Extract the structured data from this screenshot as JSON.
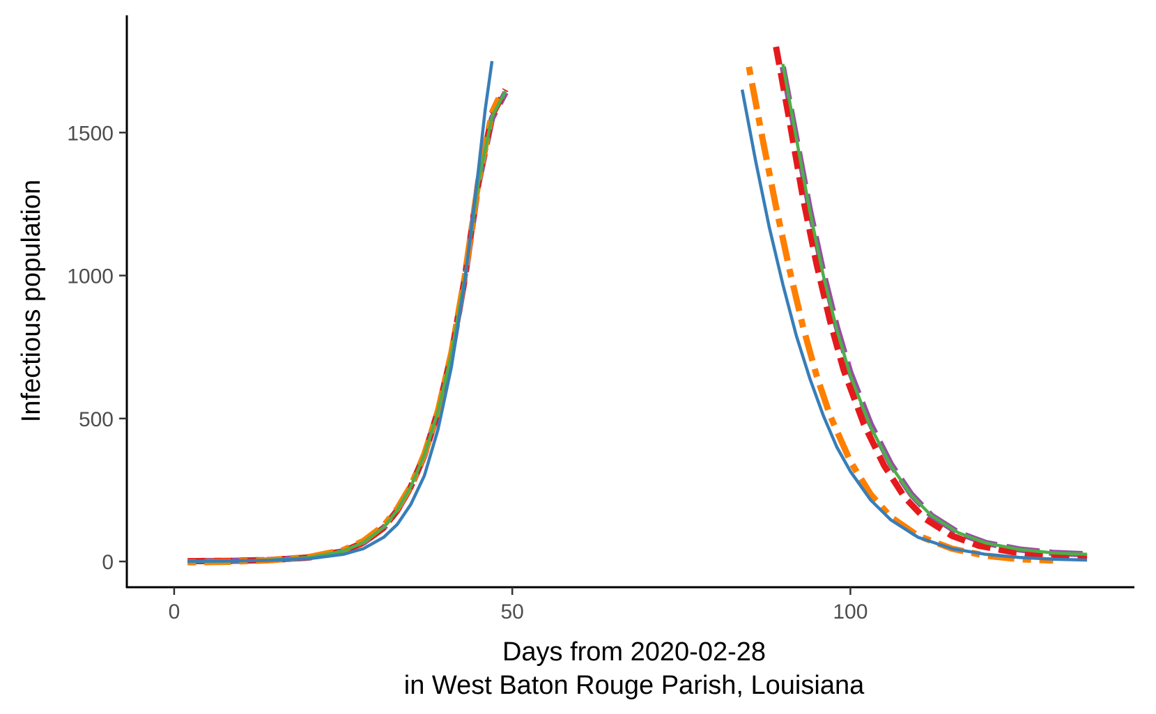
{
  "chart_data": {
    "type": "line",
    "title": "",
    "xlabel_lines": [
      "Days from 2020-02-28",
      "in West Baton Rouge Parish, Louisiana"
    ],
    "ylabel": "Infectious population",
    "xlim": [
      -7,
      142
    ],
    "ylim": [
      -90,
      1910
    ],
    "x_ticks": [
      0,
      50,
      100
    ],
    "y_ticks": [
      0,
      500,
      1000,
      1500
    ],
    "grid": false,
    "legend": "none",
    "series": [
      {
        "color": "#984EA3",
        "dash": "longdash",
        "segments": [
          [
            [
              2,
              1
            ],
            [
              8,
              2
            ],
            [
              14,
              5
            ],
            [
              20,
              14
            ],
            [
              25,
              36
            ],
            [
              28,
              66
            ],
            [
              31,
              118
            ],
            [
              33,
              178
            ],
            [
              35,
              260
            ],
            [
              37,
              370
            ],
            [
              39,
              520
            ],
            [
              41,
              720
            ],
            [
              43,
              990
            ],
            [
              45,
              1320
            ],
            [
              47,
              1550
            ],
            [
              49,
              1640
            ]
          ],
          [
            [
              90,
              1730
            ],
            [
              92,
              1480
            ],
            [
              94,
              1230
            ],
            [
              96,
              1010
            ],
            [
              98,
              820
            ],
            [
              100,
              660
            ],
            [
              103,
              480
            ],
            [
              106,
              340
            ],
            [
              109,
              235
            ],
            [
              112,
              160
            ],
            [
              116,
              100
            ],
            [
              120,
              65
            ],
            [
              125,
              42
            ],
            [
              130,
              30
            ],
            [
              135,
              25
            ]
          ]
        ]
      },
      {
        "color": "#E41A1C",
        "dash": "dashed",
        "segments": [
          [
            [
              2,
              1
            ],
            [
              8,
              2
            ],
            [
              14,
              5
            ],
            [
              20,
              14
            ],
            [
              25,
              36
            ],
            [
              28,
              66
            ],
            [
              31,
              118
            ],
            [
              33,
              180
            ],
            [
              35,
              262
            ],
            [
              37,
              372
            ],
            [
              39,
              525
            ],
            [
              41,
              725
            ],
            [
              43,
              995
            ],
            [
              45,
              1330
            ],
            [
              47,
              1560
            ],
            [
              49,
              1650
            ]
          ],
          [
            [
              89,
              1800
            ],
            [
              91,
              1540
            ],
            [
              93,
              1270
            ],
            [
              95,
              1040
            ],
            [
              97,
              840
            ],
            [
              99,
              670
            ],
            [
              102,
              480
            ],
            [
              105,
              335
            ],
            [
              108,
              225
            ],
            [
              111,
              150
            ],
            [
              115,
              90
            ],
            [
              119,
              55
            ],
            [
              124,
              33
            ],
            [
              130,
              20
            ],
            [
              135,
              15
            ]
          ]
        ]
      },
      {
        "color": "#FF7F00",
        "dash": "dotdash",
        "segments": [
          [
            [
              2,
              -3
            ],
            [
              8,
              -1
            ],
            [
              14,
              4
            ],
            [
              20,
              16
            ],
            [
              25,
              40
            ],
            [
              28,
              72
            ],
            [
              31,
              126
            ],
            [
              33,
              185
            ],
            [
              35,
              265
            ],
            [
              37,
              375
            ],
            [
              39,
              525
            ],
            [
              41,
              730
            ],
            [
              43,
              1000
            ],
            [
              45,
              1330
            ],
            [
              47,
              1570
            ],
            [
              48,
              1620
            ]
          ],
          [
            [
              85,
              1730
            ],
            [
              87,
              1480
            ],
            [
              89,
              1240
            ],
            [
              91,
              1020
            ],
            [
              93,
              820
            ],
            [
              95,
              650
            ],
            [
              97,
              510
            ],
            [
              100,
              350
            ],
            [
              103,
              235
            ],
            [
              106,
              155
            ],
            [
              110,
              90
            ],
            [
              115,
              45
            ],
            [
              120,
              20
            ],
            [
              125,
              8
            ],
            [
              130,
              3
            ]
          ]
        ]
      },
      {
        "color": "#4DAF4A",
        "dash": "solid",
        "segments": [
          [
            [
              2,
              0
            ],
            [
              8,
              1
            ],
            [
              14,
              5
            ],
            [
              20,
              14
            ],
            [
              25,
              37
            ],
            [
              28,
              67
            ],
            [
              31,
              120
            ],
            [
              33,
              180
            ],
            [
              35,
              262
            ],
            [
              37,
              372
            ],
            [
              39,
              524
            ],
            [
              41,
              725
            ],
            [
              43,
              995
            ],
            [
              45,
              1325
            ],
            [
              47,
              1555
            ],
            [
              49,
              1645
            ]
          ],
          [
            [
              90,
              1740
            ],
            [
              92,
              1480
            ],
            [
              94,
              1225
            ],
            [
              96,
              1000
            ],
            [
              98,
              810
            ],
            [
              100,
              650
            ],
            [
              103,
              470
            ],
            [
              106,
              335
            ],
            [
              109,
              232
            ],
            [
              112,
              160
            ],
            [
              116,
              100
            ],
            [
              120,
              65
            ],
            [
              125,
              42
            ],
            [
              130,
              30
            ],
            [
              135,
              25
            ]
          ]
        ]
      },
      {
        "color": "#377EB8",
        "dash": "solid",
        "segments": [
          [
            [
              2,
              1
            ],
            [
              8,
              2
            ],
            [
              14,
              4
            ],
            [
              20,
              10
            ],
            [
              25,
              25
            ],
            [
              28,
              45
            ],
            [
              31,
              85
            ],
            [
              33,
              130
            ],
            [
              35,
              200
            ],
            [
              37,
              300
            ],
            [
              39,
              460
            ],
            [
              41,
              680
            ],
            [
              43,
              980
            ],
            [
              45,
              1370
            ],
            [
              46,
              1580
            ],
            [
              47,
              1750
            ]
          ],
          [
            [
              84,
              1650
            ],
            [
              86,
              1400
            ],
            [
              88,
              1170
            ],
            [
              90,
              970
            ],
            [
              92,
              790
            ],
            [
              94,
              640
            ],
            [
              96,
              510
            ],
            [
              98,
              400
            ],
            [
              100,
              315
            ],
            [
              103,
              215
            ],
            [
              106,
              145
            ],
            [
              110,
              85
            ],
            [
              115,
              45
            ],
            [
              120,
              25
            ],
            [
              125,
              14
            ],
            [
              130,
              8
            ],
            [
              135,
              5
            ]
          ]
        ]
      }
    ]
  }
}
